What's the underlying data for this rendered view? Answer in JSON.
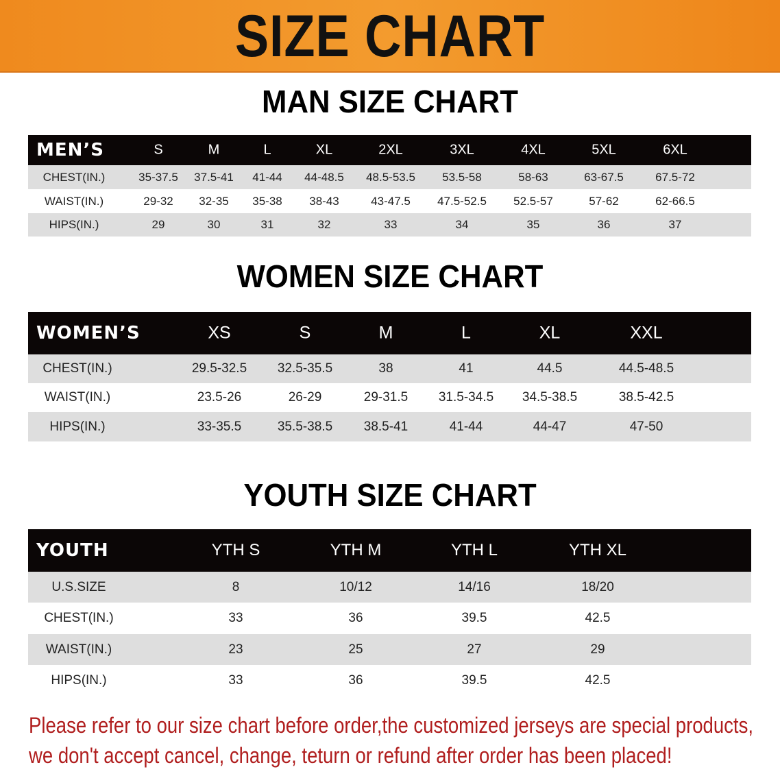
{
  "banner_title": "SIZE CHART",
  "men": {
    "title": "MAN SIZE CHART",
    "corner": "MEN’S",
    "sizes": [
      "S",
      "M",
      "L",
      "XL",
      "2XL",
      "3XL",
      "4XL",
      "5XL",
      "6XL"
    ],
    "rows": [
      {
        "label": "CHEST(IN.)",
        "values": [
          "35-37.5",
          "37.5-41",
          "41-44",
          "44-48.5",
          "48.5-53.5",
          "53.5-58",
          "58-63",
          "63-67.5",
          "67.5-72"
        ]
      },
      {
        "label": "WAIST(IN.)",
        "values": [
          "29-32",
          "32-35",
          "35-38",
          "38-43",
          "43-47.5",
          "47.5-52.5",
          "52.5-57",
          "57-62",
          "62-66.5"
        ]
      },
      {
        "label": "HIPS(IN.)",
        "values": [
          "29",
          "30",
          "31",
          "32",
          "33",
          "34",
          "35",
          "36",
          "37"
        ]
      }
    ]
  },
  "women": {
    "title": "WOMEN SIZE CHART",
    "corner": "WOMEN’S",
    "sizes": [
      "XS",
      "S",
      "M",
      "L",
      "XL",
      "XXL"
    ],
    "rows": [
      {
        "label": "CHEST(IN.)",
        "values": [
          "29.5-32.5",
          "32.5-35.5",
          "38",
          "41",
          "44.5",
          "44.5-48.5"
        ]
      },
      {
        "label": "WAIST(IN.)",
        "values": [
          "23.5-26",
          "26-29",
          "29-31.5",
          "31.5-34.5",
          "34.5-38.5",
          "38.5-42.5"
        ]
      },
      {
        "label": "HIPS(IN.)",
        "values": [
          "33-35.5",
          "35.5-38.5",
          "38.5-41",
          "41-44",
          "44-47",
          "47-50"
        ]
      }
    ]
  },
  "youth": {
    "title": "YOUTH SIZE CHART",
    "corner": "YOUTH",
    "sizes": [
      "YTH S",
      "YTH M",
      "YTH L",
      "YTH XL"
    ],
    "rows": [
      {
        "label": "U.S.SIZE",
        "values": [
          "8",
          "10/12",
          "14/16",
          "18/20"
        ]
      },
      {
        "label": "CHEST(IN.)",
        "values": [
          "33",
          "36",
          "39.5",
          "42.5"
        ]
      },
      {
        "label": "WAIST(IN.)",
        "values": [
          "23",
          "25",
          "27",
          "29"
        ]
      },
      {
        "label": "HIPS(IN.)",
        "values": [
          "33",
          "36",
          "39.5",
          "42.5"
        ]
      }
    ]
  },
  "notice": {
    "line1": "Please refer to our size chart before order,the customized jerseys are special products,",
    "line2": "we don't accept cancel, change, teturn or refund after order has been placed!"
  },
  "colors": {
    "banner": "#f08c20",
    "header": "#0b0606",
    "stripe": "#dedede",
    "notice": "#b01e1e"
  }
}
